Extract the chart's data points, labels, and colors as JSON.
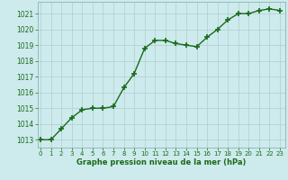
{
  "x": [
    0,
    1,
    2,
    3,
    4,
    5,
    6,
    7,
    8,
    9,
    10,
    11,
    12,
    13,
    14,
    15,
    16,
    17,
    18,
    19,
    20,
    21,
    22,
    23
  ],
  "y": [
    1013.0,
    1013.0,
    1013.7,
    1014.4,
    1014.9,
    1015.0,
    1015.0,
    1015.1,
    1016.3,
    1017.2,
    1018.8,
    1019.3,
    1019.3,
    1019.1,
    1019.0,
    1018.9,
    1019.5,
    1020.0,
    1020.6,
    1021.0,
    1021.0,
    1021.2,
    1021.3,
    1021.2
  ],
  "ylim": [
    1012.5,
    1021.75
  ],
  "xlim": [
    -0.3,
    23.5
  ],
  "yticks": [
    1013,
    1014,
    1015,
    1016,
    1017,
    1018,
    1019,
    1020,
    1021
  ],
  "xticks": [
    0,
    1,
    2,
    3,
    4,
    5,
    6,
    7,
    8,
    9,
    10,
    11,
    12,
    13,
    14,
    15,
    16,
    17,
    18,
    19,
    20,
    21,
    22,
    23
  ],
  "line_color": "#1a6b1a",
  "marker": "+",
  "marker_size": 4,
  "marker_lw": 1.2,
  "bg_color": "#cdeaec",
  "grid_color": "#b0cece",
  "xlabel": "Graphe pression niveau de la mer (hPa)",
  "xlabel_color": "#1a6b1a",
  "tick_color": "#1a6b1a",
  "spine_color": "#7aaaaa",
  "line_width": 1.0,
  "xlabel_fontsize": 6.0,
  "ytick_fontsize": 5.5,
  "xtick_fontsize": 5.0
}
